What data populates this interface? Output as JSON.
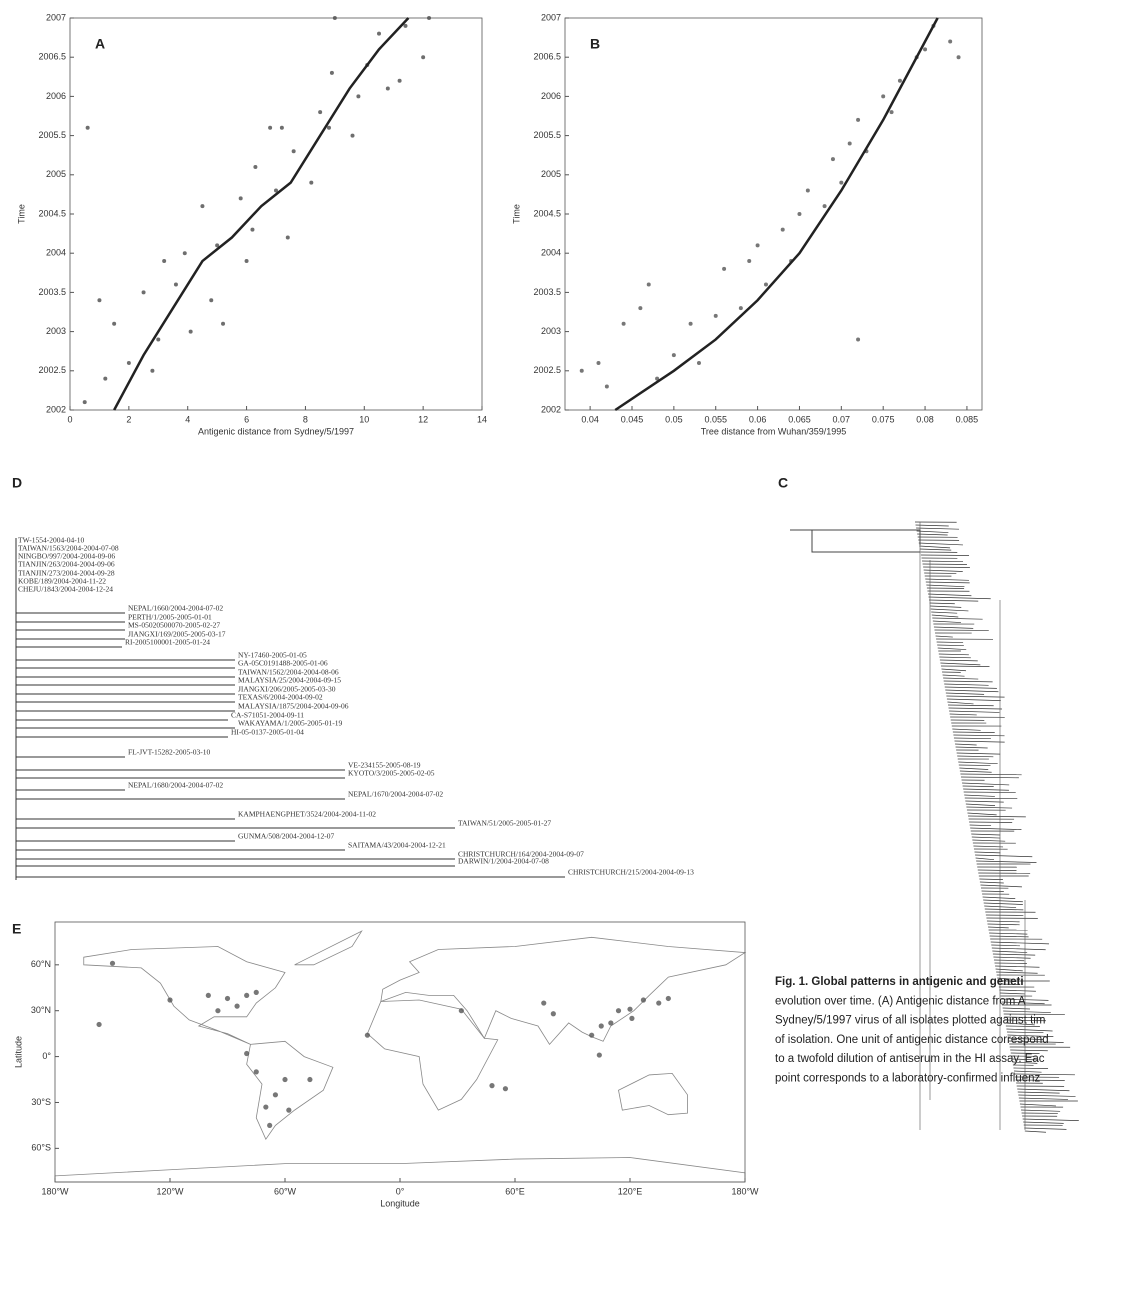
{
  "chart_data": [
    {
      "type": "scatter",
      "label": "A",
      "x_label": "Antigenic distance from Sydney/5/1997",
      "y_label": "Time",
      "color": "#4a4a4a",
      "x": [
        0.5,
        1.2,
        2.0,
        2.8,
        1.5,
        3.0,
        4.1,
        5.2,
        2.5,
        3.6,
        4.8,
        6.0,
        3.9,
        5.0,
        6.2,
        7.4,
        4.5,
        5.8,
        7.0,
        8.2,
        6.3,
        7.6,
        8.8,
        9.6,
        7.2,
        8.5,
        9.8,
        10.8,
        8.9,
        10.1,
        11.2,
        12.0,
        10.5,
        11.4,
        12.2,
        3.2,
        6.8,
        1.0,
        9.0,
        0.6
      ],
      "values": [
        2002.1,
        2002.4,
        2002.6,
        2002.5,
        2003.1,
        2002.9,
        2003.0,
        2003.1,
        2003.5,
        2003.6,
        2003.4,
        2003.9,
        2004.0,
        2004.1,
        2004.3,
        2004.2,
        2004.6,
        2004.7,
        2004.8,
        2004.9,
        2005.1,
        2005.3,
        2005.6,
        2005.5,
        2005.6,
        2005.8,
        2006.0,
        2006.1,
        2006.3,
        2006.4,
        2006.2,
        2006.5,
        2006.8,
        2006.9,
        2007.0,
        2003.9,
        2005.6,
        2003.4,
        2007.0,
        2005.6
      ],
      "line": {
        "color": "#222",
        "x": [
          1.5,
          2.5,
          3.5,
          4.5,
          5.5,
          6.5,
          7.5,
          8.5,
          9.5,
          10.5,
          11.5
        ],
        "values": [
          2002,
          2002.7,
          2003.3,
          2003.9,
          2004.2,
          2004.6,
          2004.9,
          2005.5,
          2006.1,
          2006.6,
          2007
        ]
      },
      "xlim": [
        0,
        14
      ],
      "xticks": [
        0,
        2,
        4,
        6,
        8,
        10,
        12,
        14
      ],
      "ylim": [
        2002,
        2007
      ],
      "yticks": [
        2002,
        2002.5,
        2003,
        2003.5,
        2004,
        2004.5,
        2005,
        2005.5,
        2006,
        2006.5,
        2007
      ]
    },
    {
      "type": "scatter",
      "label": "B",
      "x_label": "Tree distance from Wuhan/359/1995",
      "y_label": "Time",
      "color": "#555555",
      "x": [
        0.039,
        0.041,
        0.042,
        0.044,
        0.046,
        0.048,
        0.05,
        0.052,
        0.053,
        0.055,
        0.056,
        0.058,
        0.059,
        0.06,
        0.061,
        0.063,
        0.064,
        0.065,
        0.066,
        0.068,
        0.069,
        0.07,
        0.071,
        0.072,
        0.073,
        0.075,
        0.076,
        0.077,
        0.079,
        0.08,
        0.081,
        0.083,
        0.084,
        0.047,
        0.072
      ],
      "values": [
        2002.5,
        2002.6,
        2002.3,
        2003.1,
        2003.3,
        2002.4,
        2002.7,
        2003.1,
        2002.6,
        2003.2,
        2003.8,
        2003.3,
        2003.9,
        2004.1,
        2003.6,
        2004.3,
        2003.9,
        2004.5,
        2004.8,
        2004.6,
        2005.2,
        2004.9,
        2005.4,
        2005.7,
        2005.3,
        2006.0,
        2005.8,
        2006.2,
        2006.5,
        2006.6,
        2006.9,
        2006.7,
        2006.5,
        2003.6,
        2002.9
      ],
      "line": {
        "color": "#222",
        "x": [
          0.043,
          0.05,
          0.055,
          0.06,
          0.065,
          0.07,
          0.075,
          0.08,
          0.0815
        ],
        "values": [
          2002,
          2002.5,
          2002.9,
          2003.4,
          2004,
          2004.8,
          2005.7,
          2006.7,
          2007
        ]
      },
      "xlim": [
        0.037,
        0.0868
      ],
      "xticks": [
        0.04,
        0.045,
        0.05,
        0.055,
        0.06,
        0.065,
        0.07,
        0.075,
        0.08,
        0.085
      ],
      "ylim": [
        2002,
        2007
      ],
      "yticks": [
        2002,
        2002.5,
        2003,
        2003.5,
        2004,
        2004.5,
        2005,
        2005.5,
        2006,
        2006.5,
        2007
      ]
    },
    {
      "type": "map",
      "label": "E",
      "x_label": "Longitude",
      "y_label": "Latitude",
      "color": "#555555",
      "x": [
        -100,
        -90,
        -80,
        -75,
        -85,
        -95,
        -120,
        -150,
        -157,
        -75,
        -60,
        -47,
        -65,
        -70,
        -58,
        -68,
        -80,
        -17,
        32,
        55,
        48,
        100,
        105,
        110,
        114,
        120,
        121,
        127,
        135,
        140,
        104,
        80,
        75
      ],
      "values": [
        40,
        38,
        40,
        42,
        33,
        30,
        37,
        61,
        21,
        -10,
        -15,
        -15,
        -25,
        -33,
        -35,
        -45,
        2,
        14,
        30,
        -21,
        -19,
        14,
        20,
        22,
        30,
        31,
        25,
        37,
        35,
        38,
        1,
        28,
        35
      ],
      "xlim": [
        -180,
        180
      ],
      "xticks": [
        {
          "value": -180,
          "label": "180°W"
        },
        {
          "value": -120,
          "label": "120°W"
        },
        {
          "value": -60,
          "label": "60°W"
        },
        {
          "value": 0,
          "label": "0°"
        },
        {
          "value": 60,
          "label": "60°E"
        },
        {
          "value": 120,
          "label": "120°E"
        },
        {
          "value": 180,
          "label": "180°W"
        }
      ],
      "ylim": [
        -82,
        88
      ],
      "yticks": [
        {
          "value": 60,
          "label": "60°N"
        },
        {
          "value": 30,
          "label": "30°N"
        },
        {
          "value": 0,
          "label": "0°"
        },
        {
          "value": -30,
          "label": "30°S"
        },
        {
          "value": -60,
          "label": "60°S"
        }
      ]
    }
  ],
  "panel_d": {
    "label": "D",
    "leaves": [
      "TW-1554-2004-04-10",
      "TAIWAN/1563/2004-2004-07-08",
      "NINGBO/997/2004-2004-09-06",
      "TIANJIN/263/2004-2004-09-06",
      "TIANJIN/273/2004-2004-09-28",
      "KOBE/189/2004-2004-11-22",
      "CHEJU/1843/2004-2004-12-24",
      "NEPAL/1660/2004-2004-07-02",
      "PERTH/1/2005-2005-01-01",
      "MS-05020500070-2005-02-27",
      "JIANGXI/169/2005-2005-03-17",
      "RI-2005100001-2005-01-24",
      "NY-17460-2005-01-05",
      "GA-05C0191488-2005-01-06",
      "TAIWAN/1562/2004-2004-08-06",
      "MALAYSIA/25/2004-2004-09-15",
      "JIANGXI/206/2005-2005-03-30",
      "TEXAS/6/2004-2004-09-02",
      "MALAYSIA/1875/2004-2004-09-06",
      "CA-S71051-2004-09-11",
      "WAKAYAMA/1/2005-2005-01-19",
      "HI-05-0137-2005-01-04",
      "FL-JVT-15282-2005-03-10",
      "VE-234155-2005-08-19",
      "KYOTO/3/2005-2005-02-05",
      "NEPAL/1680/2004-2004-07-02",
      "NEPAL/1670/2004-2004-07-02",
      "KAMPHAENGPHET/3524/2004-2004-11-02",
      "TAIWAN/51/2005-2005-01-27",
      "GUNMA/508/2004-2004-12-07",
      "SAITAMA/43/2004-2004-12-21",
      "CHRISTCHURCH/164/2004-2004-09-07",
      "DARWIN/1/2004-2004-07-08",
      "CHRISTCHURCH/215/2004-2004-09-13"
    ]
  },
  "panel_c": {
    "label": "C"
  },
  "caption": {
    "lines": [
      "Fig. 1. Global patterns in antigenic and geneti",
      "evolution over time. (A) Antigenic distance from A",
      "Sydney/5/1997 virus of all isolates plotted against tim",
      "of isolation. One unit of antigenic distance correspond",
      "to a twofold dilution of antiserum in the HI assay. Eac",
      "point corresponds to a laboratory-confirmed influenz"
    ]
  }
}
